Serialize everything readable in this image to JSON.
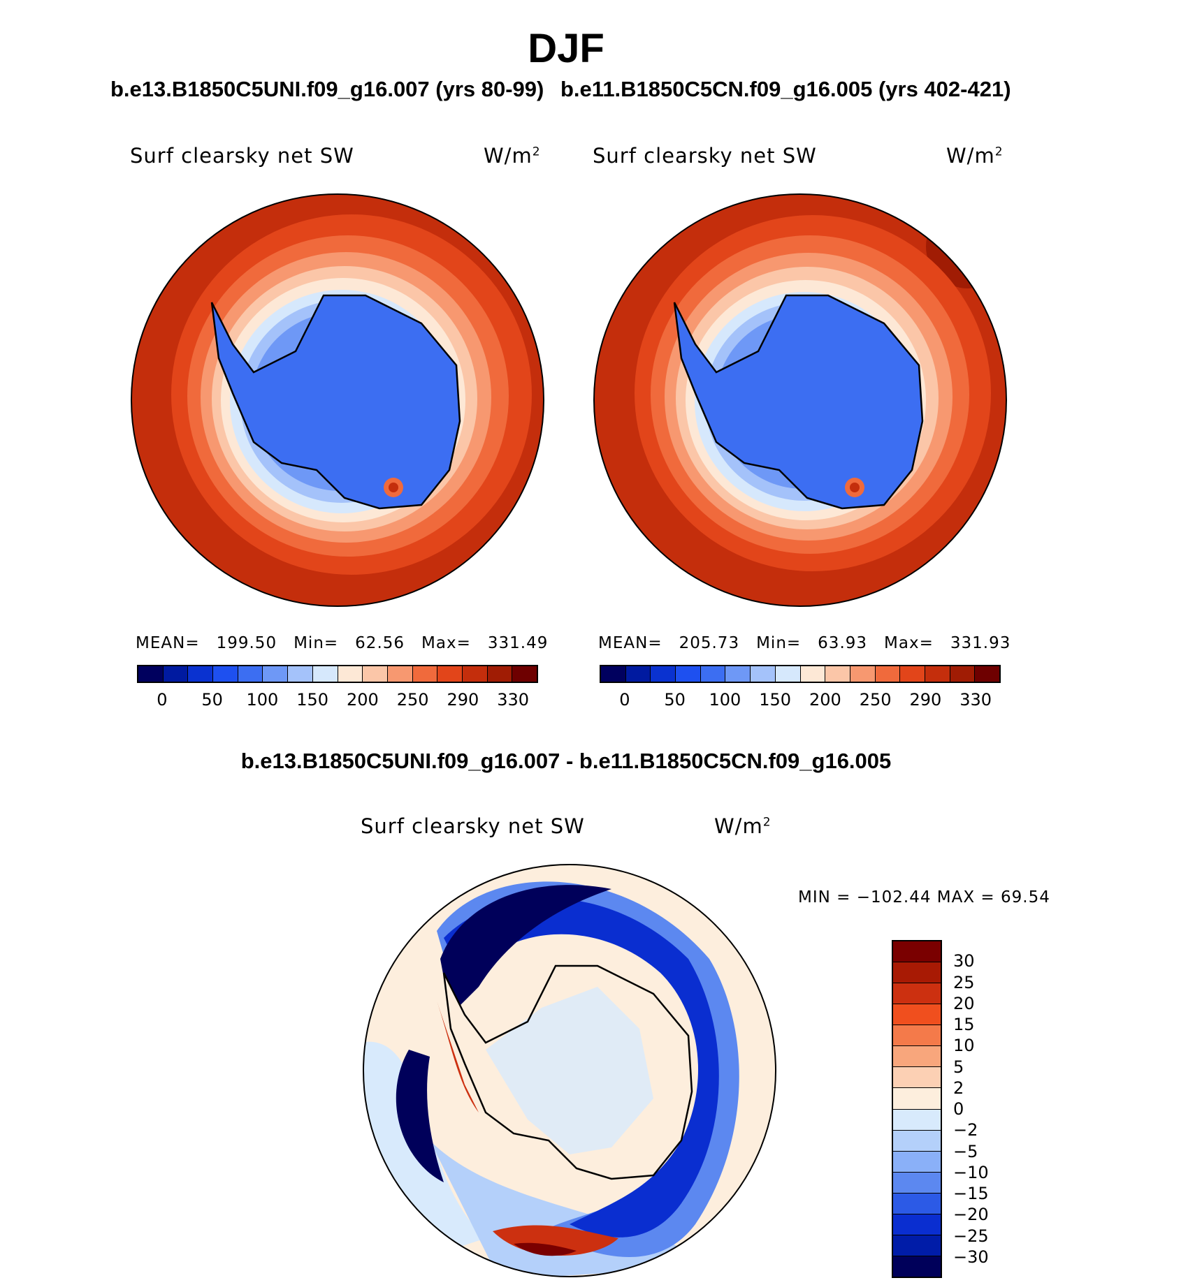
{
  "figure": {
    "season": "DJF",
    "case1_header": "b.e13.B1850C5UNI.f09_g16.007 (yrs 80-99)",
    "case2_header": "b.e11.B1850C5CN.f09_g16.005 (yrs 402-421)",
    "diff_header": "b.e13.B1850C5UNI.f09_g16.007 - b.e11.B1850C5CN.f09_g16.005"
  },
  "panels": {
    "left": {
      "variable": "Surf clearsky net SW",
      "units_base": "W/m",
      "units_exp": "2",
      "mean_label": "MEAN=",
      "mean": "199.50",
      "min_label": "Min=",
      "min": "62.56",
      "max_label": "Max=",
      "max": "331.49"
    },
    "right": {
      "variable": "Surf clearsky net SW",
      "units_base": "W/m",
      "units_exp": "2",
      "mean_label": "MEAN=",
      "mean": "205.73",
      "min_label": "Min=",
      "min": "63.93",
      "max_label": "Max=",
      "max": "331.93"
    },
    "diff": {
      "variable": "Surf clearsky net SW",
      "units_base": "W/m",
      "units_exp": "2",
      "minmax_text": "MIN = −102.44 MAX =   69.54"
    }
  },
  "chart_data": [
    {
      "type": "heatmap",
      "title": "b.e13.B1850C5UNI.f09_g16.007 (yrs 80-99)",
      "projection": "south-polar-stereographic",
      "colorbar_orientation": "horizontal",
      "colorbar_ticks": [
        "0",
        "50",
        "100",
        "150",
        "200",
        "250",
        "290",
        "330"
      ],
      "colorbar_colors": [
        "#00005e",
        "#001aa0",
        "#0a32d0",
        "#1e50f0",
        "#3c6ef2",
        "#6e98f6",
        "#a4c2fa",
        "#d6e8fc",
        "#fde8d6",
        "#fbc6a8",
        "#f79870",
        "#f06a3c",
        "#e2451a",
        "#c42e0c",
        "#a01c04",
        "#6e0000"
      ],
      "mean": 199.5,
      "min": 62.56,
      "max": 331.49
    },
    {
      "type": "heatmap",
      "title": "b.e11.B1850C5CN.f09_g16.005 (yrs 402-421)",
      "projection": "south-polar-stereographic",
      "colorbar_orientation": "horizontal",
      "colorbar_ticks": [
        "0",
        "50",
        "100",
        "150",
        "200",
        "250",
        "290",
        "330"
      ],
      "colorbar_colors": [
        "#00005e",
        "#001aa0",
        "#0a32d0",
        "#1e50f0",
        "#3c6ef2",
        "#6e98f6",
        "#a4c2fa",
        "#d6e8fc",
        "#fde8d6",
        "#fbc6a8",
        "#f79870",
        "#f06a3c",
        "#e2451a",
        "#c42e0c",
        "#a01c04",
        "#6e0000"
      ],
      "mean": 205.73,
      "min": 63.93,
      "max": 331.93
    },
    {
      "type": "heatmap",
      "title": "b.e13.B1850C5UNI.f09_g16.007 - b.e11.B1850C5CN.f09_g16.005",
      "projection": "south-polar-stereographic",
      "colorbar_orientation": "vertical",
      "colorbar_ticks": [
        "30",
        "25",
        "20",
        "15",
        "10",
        "5",
        "2",
        "0",
        "−2",
        "−5",
        "−10",
        "−15",
        "−20",
        "−25",
        "−30"
      ],
      "colorbar_colors": [
        "#7a0000",
        "#a81a04",
        "#cc3010",
        "#f04f1e",
        "#f47a4a",
        "#f8a67c",
        "#fcd0b4",
        "#fdeedd",
        "#d8eafc",
        "#b4d0fa",
        "#8ab0f8",
        "#5c88f0",
        "#2c5ae6",
        "#0a2ed0",
        "#001ca8",
        "#00005a"
      ],
      "min": -102.44,
      "max": 69.54
    }
  ]
}
